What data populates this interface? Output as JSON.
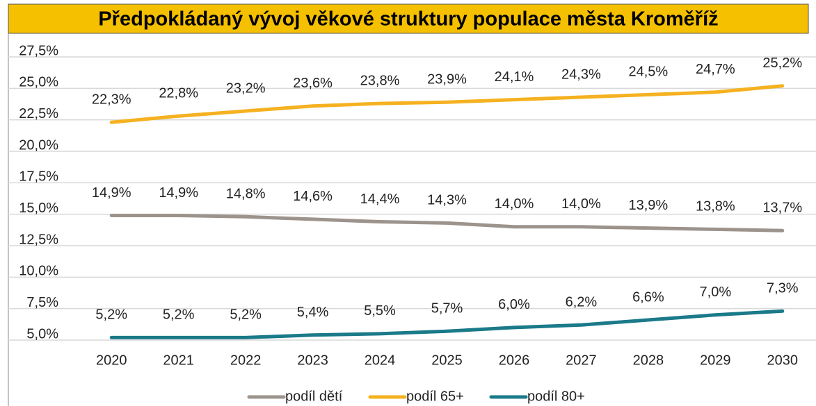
{
  "chart_data": {
    "type": "line",
    "title": "Předpokládaný vývoj věkové struktury populace města Kroměříž",
    "categories": [
      "2020",
      "2021",
      "2022",
      "2023",
      "2024",
      "2025",
      "2026",
      "2027",
      "2028",
      "2029",
      "2030"
    ],
    "series": [
      {
        "name": "podíl dětí",
        "color": "#9c938c",
        "values": [
          14.9,
          14.9,
          14.8,
          14.6,
          14.4,
          14.3,
          14.0,
          14.0,
          13.9,
          13.8,
          13.7
        ],
        "value_labels": [
          "14,9%",
          "14,9%",
          "14,8%",
          "14,6%",
          "14,4%",
          "14,3%",
          "14,0%",
          "14,0%",
          "13,9%",
          "13,8%",
          "13,7%"
        ]
      },
      {
        "name": "podíl 65+",
        "color": "#f5b120",
        "values": [
          22.3,
          22.8,
          23.2,
          23.6,
          23.8,
          23.9,
          24.1,
          24.3,
          24.5,
          24.7,
          25.2
        ],
        "value_labels": [
          "22,3%",
          "22,8%",
          "23,2%",
          "23,6%",
          "23,8%",
          "23,9%",
          "24,1%",
          "24,3%",
          "24,5%",
          "24,7%",
          "25,2%"
        ]
      },
      {
        "name": "podíl 80+",
        "color": "#1a7a89",
        "values": [
          5.2,
          5.2,
          5.2,
          5.4,
          5.5,
          5.7,
          6.0,
          6.2,
          6.6,
          7.0,
          7.3
        ],
        "value_labels": [
          "5,2%",
          "5,2%",
          "5,2%",
          "5,4%",
          "5,5%",
          "5,7%",
          "6,0%",
          "6,2%",
          "6,6%",
          "7,0%",
          "7,3%"
        ]
      }
    ],
    "ylim": [
      5,
      27.5
    ],
    "yticks": [
      {
        "value": 5,
        "label": "5,0%"
      },
      {
        "value": 7.5,
        "label": "7,5%"
      },
      {
        "value": 10,
        "label": "10,0%"
      },
      {
        "value": 12.5,
        "label": "12,5%"
      },
      {
        "value": 15,
        "label": "15,0%"
      },
      {
        "value": 17.5,
        "label": "17,5%"
      },
      {
        "value": 20,
        "label": "20,0%"
      },
      {
        "value": 22.5,
        "label": "22,5%"
      },
      {
        "value": 25,
        "label": "25,0%"
      },
      {
        "value": 27.5,
        "label": "27,5%"
      }
    ],
    "grid": true,
    "legend": "bottom"
  }
}
